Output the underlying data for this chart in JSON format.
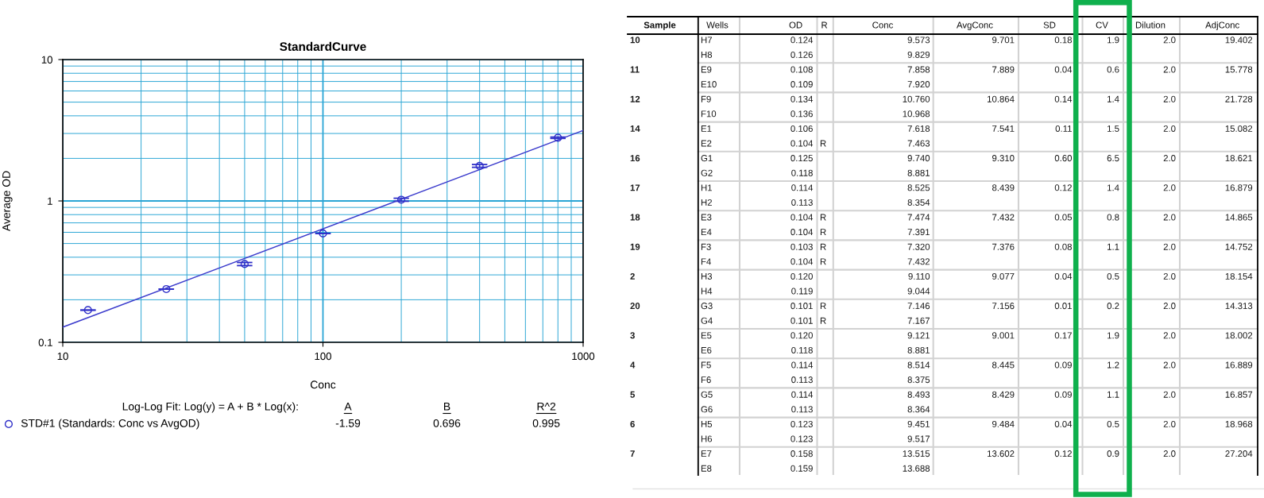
{
  "chart_data": [
    {
      "type": "scatter",
      "title": "StandardCurve",
      "xlabel": "Conc",
      "ylabel": "Average OD",
      "x": [
        12.5,
        25,
        50,
        100,
        200,
        400,
        800
      ],
      "xlim": [
        10,
        1000
      ],
      "ylim": [
        0.1,
        10
      ],
      "xticks": [
        10,
        {
          "value": 20,
          "label": null
        },
        {
          "value": 30,
          "label": null
        },
        {
          "value": 40,
          "label": null
        },
        {
          "value": 50,
          "label": null
        },
        {
          "value": 60,
          "label": null
        },
        {
          "value": 70,
          "label": null
        },
        {
          "value": 80,
          "label": null
        },
        {
          "value": 90,
          "label": null
        },
        100,
        {
          "value": 200,
          "label": null
        },
        {
          "value": 300,
          "label": null
        },
        {
          "value": 400,
          "label": null
        },
        {
          "value": 500,
          "label": null
        },
        {
          "value": 600,
          "label": null
        },
        {
          "value": 700,
          "label": null
        },
        {
          "value": 800,
          "label": null
        },
        {
          "value": 900,
          "label": null
        },
        1000
      ],
      "yticks": [
        0.1,
        {
          "value": 0.2,
          "label": null
        },
        {
          "value": 0.3,
          "label": null
        },
        {
          "value": 0.4,
          "label": null
        },
        {
          "value": 0.5,
          "label": null
        },
        {
          "value": 0.6,
          "label": null
        },
        {
          "value": 0.7,
          "label": null
        },
        {
          "value": 0.8,
          "label": null
        },
        {
          "value": 0.9,
          "label": null
        },
        1,
        {
          "value": 2,
          "label": null
        },
        {
          "value": 3,
          "label": null
        },
        {
          "value": 4,
          "label": null
        },
        {
          "value": 5,
          "label": null
        },
        {
          "value": 6,
          "label": null
        },
        {
          "value": 7,
          "label": null
        },
        {
          "value": 8,
          "label": null
        },
        {
          "value": 9,
          "label": null
        },
        10
      ],
      "log": "xy",
      "grid": true,
      "legend": "bottom",
      "marker": "circle",
      "series": [
        {
          "name": "STD#1 (Standards: Conc vs AvgOD)",
          "color": "#2f2fc8",
          "values": [
            0.169,
            0.238,
            0.358,
            0.589,
            1.02,
            1.77,
            2.8
          ],
          "errors": [
            0,
            0,
            0.009,
            0,
            0.025,
            0.04,
            0.03
          ]
        },
        {
          "type": "line",
          "marker": "none",
          "color": "#3b3bcc",
          "x": [
            10,
            1000
          ],
          "values": [
            0.128,
            3.15
          ]
        }
      ],
      "annotations": [
        "Log-Log Fit: Log(y) = A + B * Log(x):",
        "A",
        "B",
        "R^2",
        "-1.59",
        "0.696",
        "0.995"
      ]
    },
    {
      "type": "other",
      "categories": [
        "Sample",
        "Wells",
        "OD",
        "R",
        "Conc",
        "AvgConc",
        "SD",
        "CV",
        "Dilution",
        "AdjConc"
      ],
      "cell_labels": [
        [
          "10",
          "H7",
          "0.124",
          null,
          "9.573",
          "9.701",
          "0.18",
          "1.9",
          "2.0",
          "19.402"
        ],
        [
          null,
          "H8",
          "0.126",
          null,
          "9.829",
          null,
          null,
          null,
          null,
          null
        ],
        [
          "11",
          "E9",
          "0.108",
          null,
          "7.858",
          "7.889",
          "0.04",
          "0.6",
          "2.0",
          "15.778"
        ],
        [
          null,
          "E10",
          "0.109",
          null,
          "7.920",
          null,
          null,
          null,
          null,
          null
        ],
        [
          "12",
          "F9",
          "0.134",
          null,
          "10.760",
          "10.864",
          "0.14",
          "1.4",
          "2.0",
          "21.728"
        ],
        [
          null,
          "F10",
          "0.136",
          null,
          "10.968",
          null,
          null,
          null,
          null,
          null
        ],
        [
          "14",
          "E1",
          "0.106",
          null,
          "7.618",
          "7.541",
          "0.11",
          "1.5",
          "2.0",
          "15.082"
        ],
        [
          null,
          "E2",
          "0.104",
          "R",
          "7.463",
          null,
          null,
          null,
          null,
          null
        ],
        [
          "16",
          "G1",
          "0.125",
          null,
          "9.740",
          "9.310",
          "0.60",
          "6.5",
          "2.0",
          "18.621"
        ],
        [
          null,
          "G2",
          "0.118",
          null,
          "8.881",
          null,
          null,
          null,
          null,
          null
        ],
        [
          "17",
          "H1",
          "0.114",
          null,
          "8.525",
          "8.439",
          "0.12",
          "1.4",
          "2.0",
          "16.879"
        ],
        [
          null,
          "H2",
          "0.113",
          null,
          "8.354",
          null,
          null,
          null,
          null,
          null
        ],
        [
          "18",
          "E3",
          "0.104",
          "R",
          "7.474",
          "7.432",
          "0.05",
          "0.8",
          "2.0",
          "14.865"
        ],
        [
          null,
          "E4",
          "0.104",
          "R",
          "7.391",
          null,
          null,
          null,
          null,
          null
        ],
        [
          "19",
          "F3",
          "0.103",
          "R",
          "7.320",
          "7.376",
          "0.08",
          "1.1",
          "2.0",
          "14.752"
        ],
        [
          null,
          "F4",
          "0.104",
          "R",
          "7.432",
          null,
          null,
          null,
          null,
          null
        ],
        [
          "2",
          "H3",
          "0.120",
          null,
          "9.110",
          "9.077",
          "0.04",
          "0.5",
          "2.0",
          "18.154"
        ],
        [
          null,
          "H4",
          "0.119",
          null,
          "9.044",
          null,
          null,
          null,
          null,
          null
        ],
        [
          "20",
          "G3",
          "0.101",
          "R",
          "7.146",
          "7.156",
          "0.01",
          "0.2",
          "2.0",
          "14.313"
        ],
        [
          null,
          "G4",
          "0.101",
          "R",
          "7.167",
          null,
          null,
          null,
          null,
          null
        ],
        [
          "3",
          "E5",
          "0.120",
          null,
          "9.121",
          "9.001",
          "0.17",
          "1.9",
          "2.0",
          "18.002"
        ],
        [
          null,
          "E6",
          "0.118",
          null,
          "8.881",
          null,
          null,
          null,
          null,
          null
        ],
        [
          "4",
          "F5",
          "0.114",
          null,
          "8.514",
          "8.445",
          "0.09",
          "1.2",
          "2.0",
          "16.889"
        ],
        [
          null,
          "F6",
          "0.113",
          null,
          "8.375",
          null,
          null,
          null,
          null,
          null
        ],
        [
          "5",
          "G5",
          "0.114",
          null,
          "8.493",
          "8.429",
          "0.09",
          "1.1",
          "2.0",
          "16.857"
        ],
        [
          null,
          "G6",
          "0.113",
          null,
          "8.364",
          null,
          null,
          null,
          null,
          null
        ],
        [
          "6",
          "H5",
          "0.123",
          null,
          "9.451",
          "9.484",
          "0.04",
          "0.5",
          "2.0",
          "18.968"
        ],
        [
          null,
          "H6",
          "0.123",
          null,
          "9.517",
          null,
          null,
          null,
          null,
          null
        ],
        [
          "7",
          "E7",
          "0.158",
          null,
          "13.515",
          "13.602",
          "0.12",
          "0.9",
          "2.0",
          "27.204"
        ],
        [
          null,
          "E8",
          "0.159",
          null,
          "13.688",
          null,
          null,
          null,
          null,
          null
        ]
      ]
    }
  ]
}
